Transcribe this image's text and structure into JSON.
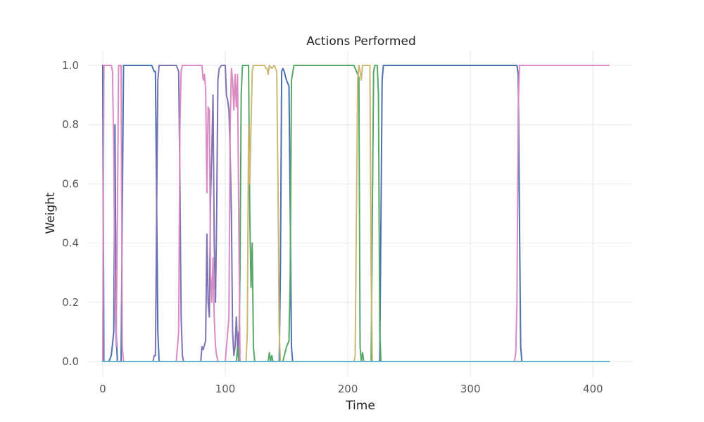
{
  "chart_data": {
    "type": "line",
    "title": "Actions Performed",
    "xlabel": "Time",
    "ylabel": "Weight",
    "xlim": [
      -12,
      432
    ],
    "ylim": [
      -0.05,
      1.05
    ],
    "xticks": [
      0,
      100,
      200,
      300,
      400
    ],
    "yticks": [
      0.0,
      0.2,
      0.4,
      0.6,
      0.8,
      1.0
    ],
    "grid": true,
    "legend": "none",
    "series": [
      {
        "color": "#4c72b0",
        "points": [
          [
            0,
            1
          ],
          [
            1,
            0
          ],
          [
            5,
            0
          ],
          [
            7,
            0.02
          ],
          [
            9,
            0.1
          ],
          [
            10,
            0.8
          ],
          [
            11,
            0.1
          ],
          [
            12,
            0
          ],
          [
            15,
            0
          ],
          [
            16,
            0.5
          ],
          [
            17,
            1
          ],
          [
            18,
            1
          ],
          [
            40,
            1
          ],
          [
            42,
            0.98
          ],
          [
            43,
            0.98
          ],
          [
            45,
            0.1
          ],
          [
            46,
            0
          ],
          [
            144,
            0
          ],
          [
            145,
            0.3
          ],
          [
            146,
            0.98
          ],
          [
            147,
            0.99
          ],
          [
            148,
            0.98
          ],
          [
            150,
            0.95
          ],
          [
            152,
            0.93
          ],
          [
            153,
            0.5
          ],
          [
            154,
            0.05
          ],
          [
            155,
            0
          ],
          [
            226,
            0
          ],
          [
            228,
            0.95
          ],
          [
            229,
            1
          ],
          [
            338,
            1
          ],
          [
            339,
            0.97
          ],
          [
            340,
            0.5
          ],
          [
            341,
            0.05
          ],
          [
            342,
            0
          ],
          [
            413,
            0
          ]
        ]
      },
      {
        "color": "#dd8452",
        "points": [
          [
            0,
            0
          ],
          [
            413,
            0
          ]
        ]
      },
      {
        "color": "#55a868",
        "points": [
          [
            0,
            0
          ],
          [
            109,
            0
          ],
          [
            110,
            0.05
          ],
          [
            111,
            0
          ],
          [
            112,
            0.3
          ],
          [
            113,
            0.9
          ],
          [
            114,
            1
          ],
          [
            119,
            1
          ],
          [
            120,
            0.5
          ],
          [
            121,
            0.25
          ],
          [
            122,
            0.4
          ],
          [
            123,
            0.05
          ],
          [
            124,
            0
          ],
          [
            135,
            0
          ],
          [
            136,
            0.03
          ],
          [
            137,
            0
          ],
          [
            138,
            0.02
          ],
          [
            139,
            0
          ],
          [
            147,
            0
          ],
          [
            150,
            0.05
          ],
          [
            152,
            0.07
          ],
          [
            153,
            0.3
          ],
          [
            154,
            0.95
          ],
          [
            156,
            1
          ],
          [
            205,
            1
          ],
          [
            207,
            0.98
          ],
          [
            208,
            0.97
          ],
          [
            209,
            0.96
          ],
          [
            210,
            0.05
          ],
          [
            211,
            0
          ],
          [
            212,
            0.03
          ],
          [
            213,
            0
          ],
          [
            219,
            0
          ],
          [
            220,
            0.5
          ],
          [
            221,
            0.98
          ],
          [
            222,
            1
          ],
          [
            224,
            1
          ],
          [
            225,
            0.9
          ],
          [
            226,
            0.1
          ],
          [
            227,
            0
          ],
          [
            413,
            0
          ]
        ]
      },
      {
        "color": "#c44e52",
        "points": [
          [
            0,
            0
          ],
          [
            413,
            0
          ]
        ]
      },
      {
        "color": "#8172b3",
        "points": [
          [
            0,
            0
          ],
          [
            41,
            0
          ],
          [
            42,
            0.02
          ],
          [
            43,
            0.02
          ],
          [
            44,
            0.5
          ],
          [
            45,
            0.95
          ],
          [
            46,
            1
          ],
          [
            60,
            1
          ],
          [
            62,
            0.98
          ],
          [
            63,
            0.6
          ],
          [
            64,
            0.15
          ],
          [
            65,
            0.02
          ],
          [
            66,
            0
          ],
          [
            80,
            0
          ],
          [
            81,
            0.05
          ],
          [
            82,
            0.04
          ],
          [
            84,
            0.07
          ],
          [
            85,
            0.43
          ],
          [
            86,
            0.2
          ],
          [
            87,
            0.15
          ],
          [
            88,
            0.55
          ],
          [
            89,
            0.7
          ],
          [
            90,
            0.9
          ],
          [
            91,
            0.4
          ],
          [
            92,
            0.2
          ],
          [
            93,
            0.5
          ],
          [
            94,
            0.95
          ],
          [
            95,
            0.99
          ],
          [
            97,
            1
          ],
          [
            100,
            1
          ],
          [
            101,
            0.9
          ],
          [
            102,
            0.88
          ],
          [
            103,
            0.85
          ],
          [
            104,
            0.7
          ],
          [
            105,
            0.5
          ],
          [
            106,
            0.1
          ],
          [
            107,
            0.02
          ],
          [
            108,
            0.05
          ],
          [
            109,
            0.15
          ],
          [
            110,
            0.05
          ],
          [
            111,
            0.1
          ],
          [
            112,
            0
          ],
          [
            413,
            0
          ]
        ]
      },
      {
        "color": "#937860",
        "points": [
          [
            0,
            0
          ],
          [
            413,
            0
          ]
        ]
      },
      {
        "color": "#da8bc3",
        "points": [
          [
            0,
            0
          ],
          [
            1,
            1
          ],
          [
            7,
            1
          ],
          [
            8,
            0.98
          ],
          [
            9,
            0.7
          ],
          [
            10,
            0.2
          ],
          [
            11,
            0.05
          ],
          [
            12,
            0.5
          ],
          [
            13,
            1
          ],
          [
            15,
            1
          ],
          [
            16,
            0.05
          ],
          [
            17,
            0
          ],
          [
            60,
            0
          ],
          [
            62,
            0.1
          ],
          [
            63,
            0.8
          ],
          [
            64,
            0.98
          ],
          [
            65,
            1
          ],
          [
            81,
            1
          ],
          [
            82,
            0.95
          ],
          [
            83,
            0.97
          ],
          [
            84,
            0.92
          ],
          [
            85,
            0.57
          ],
          [
            86,
            0.86
          ],
          [
            87,
            0.85
          ],
          [
            88,
            0.3
          ],
          [
            89,
            0.2
          ],
          [
            90,
            0.35
          ],
          [
            91,
            0.15
          ],
          [
            92,
            0.05
          ],
          [
            93,
            0.02
          ],
          [
            94,
            0
          ],
          [
            100,
            0
          ],
          [
            102,
            0.1
          ],
          [
            103,
            0.15
          ],
          [
            104,
            0.8
          ],
          [
            105,
            0.99
          ],
          [
            106,
            0.95
          ],
          [
            107,
            0.85
          ],
          [
            108,
            0.97
          ],
          [
            109,
            0.86
          ],
          [
            110,
            0.97
          ],
          [
            111,
            0.5
          ],
          [
            112,
            0
          ],
          [
            336,
            0
          ],
          [
            337,
            0.03
          ],
          [
            338,
            0.2
          ],
          [
            339,
            0.85
          ],
          [
            340,
            1
          ],
          [
            413,
            1
          ]
        ]
      },
      {
        "color": "#8c8c8c",
        "points": [
          [
            0,
            0
          ],
          [
            413,
            0
          ]
        ]
      },
      {
        "color": "#ccb974",
        "points": [
          [
            0,
            0
          ],
          [
            117,
            0
          ],
          [
            118,
            0.1
          ],
          [
            119,
            0.8
          ],
          [
            120,
            0.6
          ],
          [
            121,
            0.8
          ],
          [
            122,
            0.98
          ],
          [
            123,
            1
          ],
          [
            132,
            1
          ],
          [
            133,
            0.99
          ],
          [
            134,
            0.99
          ],
          [
            135,
            0.97
          ],
          [
            136,
            1
          ],
          [
            138,
            0.99
          ],
          [
            140,
            1
          ],
          [
            142,
            0.98
          ],
          [
            143,
            0.6
          ],
          [
            144,
            0.1
          ],
          [
            145,
            0
          ],
          [
            205,
            0
          ],
          [
            206,
            0.02
          ],
          [
            207,
            0.5
          ],
          [
            208,
            0.95
          ],
          [
            209,
            1
          ],
          [
            210,
            0.98
          ],
          [
            211,
            0.95
          ],
          [
            212,
            1
          ],
          [
            218,
            1
          ],
          [
            219,
            0.3
          ],
          [
            220,
            0
          ],
          [
            413,
            0
          ]
        ]
      },
      {
        "color": "#64b5cd",
        "points": [
          [
            0,
            0
          ],
          [
            413,
            0
          ]
        ]
      }
    ]
  }
}
